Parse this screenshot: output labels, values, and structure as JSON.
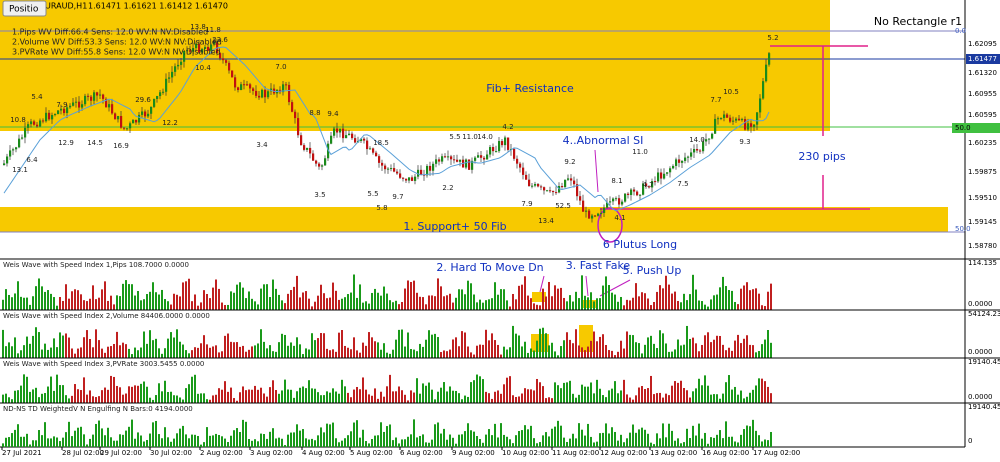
{
  "header": {
    "tab": "Positio",
    "symbol": "EURAUD,H1",
    "quote": "1.61471 1.61621 1.61412 1.61470"
  },
  "legend": [
    "1.Pips   WV Diff:66.4 Sens: 12.0 WV:N NV:Disabled",
    "2.Volume WV Diff:53.3 Sens: 12.0 WV:N NV:Disabled",
    "3.PVRate WV Diff:55.8 Sens: 12.0 WV:N NV:Disabled"
  ],
  "annotations": [
    "No Rectangle r1",
    "Fib+ Resistance",
    "1. Support+ 50 Fib",
    "4..Abnormal SI",
    "230 pips",
    "6 Plutus Long",
    "2. Hard To Move Dn",
    "3. Fast Fake",
    "5. Push Up"
  ],
  "wave_labels": [
    "13.1",
    "6.4",
    "10.8",
    "5.4",
    "7.9",
    "12.9",
    "14.5",
    "16.9",
    "29.6",
    "12.2",
    "13.8",
    "11.8",
    "23.6",
    "10.4",
    "7.0",
    "3.4",
    "8.8",
    "9.4",
    "3.5",
    "18.5",
    "5.5",
    "5.8",
    "9.7",
    "2.2",
    "5.5",
    "11.0",
    "14.0",
    "4.2",
    "9.2",
    "7.9",
    "13.4",
    "52.5",
    "4.1",
    "8.1",
    "11.0",
    "14.0",
    "7.7",
    "10.5",
    "9.3",
    "5.2",
    "4.7",
    "7.5"
  ],
  "price_axis": [
    "0.0",
    "1.62095",
    "1.61477",
    "1.61320",
    "1.60955",
    "1.60595",
    "50.0",
    "1.60235",
    "1.59875",
    "1.59510",
    "1.59145",
    "50.0",
    "1.58780"
  ],
  "panels": [
    {
      "title": "Weis Wave with Speed Index 1,Pips    108.7000 0.0000",
      "top": "114.135",
      "bottom": "0.0000"
    },
    {
      "title": "Weis Wave with Speed Index 2,Volume 84406.0000 0.0000",
      "top": "54124.235",
      "bottom": "0.0000"
    },
    {
      "title": "Weis Wave with Speed Index 3,PVRate 3003.5455 0.0000",
      "top": "19140.45",
      "bottom": "0.0000"
    },
    {
      "title": "ND-NS TD WeightedV N Engulfing N Bars:0    4194.0000",
      "top": "19140.45",
      "bottom": "0"
    }
  ],
  "time_axis": [
    "27 Jul 2021",
    "28 Jul 02:00",
    "29 Jul 02:00",
    "30 Jul 02:00",
    "2 Aug 02:00",
    "3 Aug 02:00",
    "4 Aug 02:00",
    "5 Aug 02:00",
    "6 Aug 02:00",
    "9 Aug 02:00",
    "10 Aug 02:00",
    "11 Aug 02:00",
    "12 Aug 02:00",
    "13 Aug 02:00",
    "16 Aug 02:00",
    "17 Aug 02:00"
  ]
}
